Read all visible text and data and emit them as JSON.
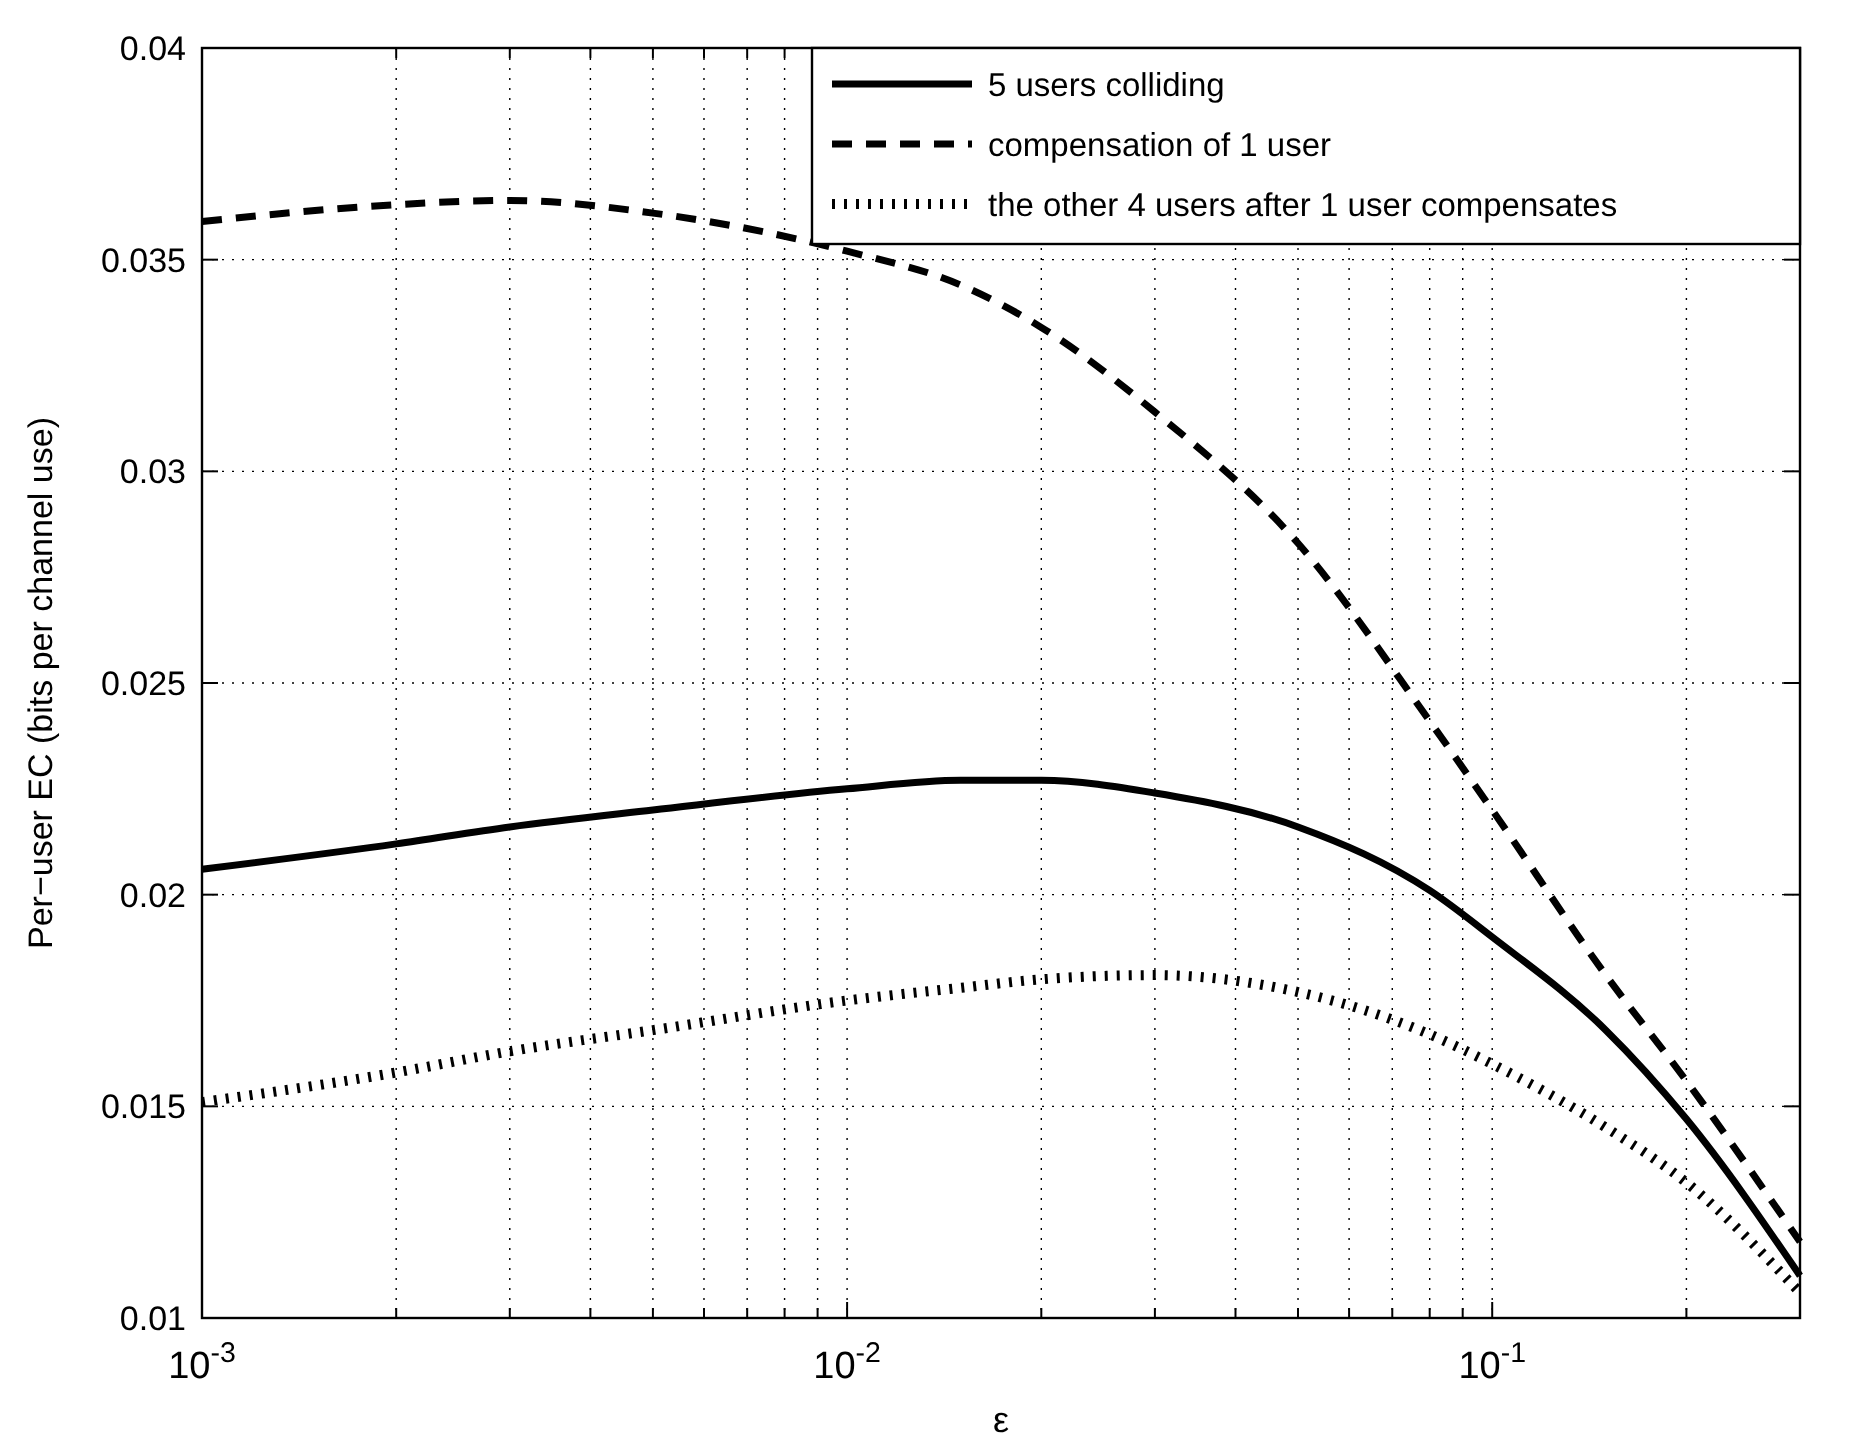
{
  "chart_data": {
    "type": "line",
    "xlabel": "ε",
    "ylabel": "Per−user EC (bits per channel use)",
    "log": "x",
    "grid": true,
    "legend": "top right",
    "xlim": [
      0.001,
      0.3
    ],
    "ylim": [
      0.01,
      0.04
    ],
    "xticks": [
      {
        "value": 0.001,
        "label": "10$^{-3}$"
      },
      {
        "value": 0.002,
        "label": null
      },
      {
        "value": 0.003,
        "label": null
      },
      {
        "value": 0.004,
        "label": null
      },
      {
        "value": 0.005,
        "label": null
      },
      {
        "value": 0.006,
        "label": null
      },
      {
        "value": 0.007,
        "label": null
      },
      {
        "value": 0.008,
        "label": null
      },
      {
        "value": 0.009,
        "label": null
      },
      {
        "value": 0.01,
        "label": "10$^{-2}$"
      },
      {
        "value": 0.02,
        "label": null
      },
      {
        "value": 0.03,
        "label": null
      },
      {
        "value": 0.04,
        "label": null
      },
      {
        "value": 0.05,
        "label": null
      },
      {
        "value": 0.06,
        "label": null
      },
      {
        "value": 0.07,
        "label": null
      },
      {
        "value": 0.08,
        "label": null
      },
      {
        "value": 0.09,
        "label": null
      },
      {
        "value": 0.1,
        "label": "10$^{-1}$"
      },
      {
        "value": 0.2,
        "label": null
      }
    ],
    "yticks": [
      0.01,
      0.015,
      0.02,
      0.025,
      0.03,
      0.035,
      0.04
    ],
    "x": [
      0.001,
      0.002,
      0.003,
      0.005,
      0.01,
      0.015,
      0.02,
      0.03,
      0.05,
      0.08,
      0.1,
      0.15,
      0.2,
      0.3
    ],
    "series": [
      {
        "name": "5 users colliding",
        "color": "#000000",
        "line_style": "solid",
        "values": [
          0.0206,
          0.0212,
          0.0216,
          0.022,
          0.0225,
          0.0227,
          0.0227,
          0.0224,
          0.0216,
          0.0201,
          0.019,
          0.0168,
          0.0147,
          0.011
        ]
      },
      {
        "name": "compensation of 1 user",
        "color": "#000000",
        "line_style": "dashed",
        "values": [
          0.0359,
          0.0363,
          0.0364,
          0.0361,
          0.0352,
          0.0344,
          0.0334,
          0.0314,
          0.0283,
          0.0241,
          0.022,
          0.0181,
          0.0156,
          0.0118
        ]
      },
      {
        "name": "the other 4 users after 1 user compensates",
        "color": "#000000",
        "line_style": "dotted",
        "values": [
          0.0151,
          0.0158,
          0.0163,
          0.0168,
          0.0175,
          0.0178,
          0.018,
          0.0181,
          0.0177,
          0.0167,
          0.016,
          0.0145,
          0.0132,
          0.0106
        ]
      }
    ]
  }
}
